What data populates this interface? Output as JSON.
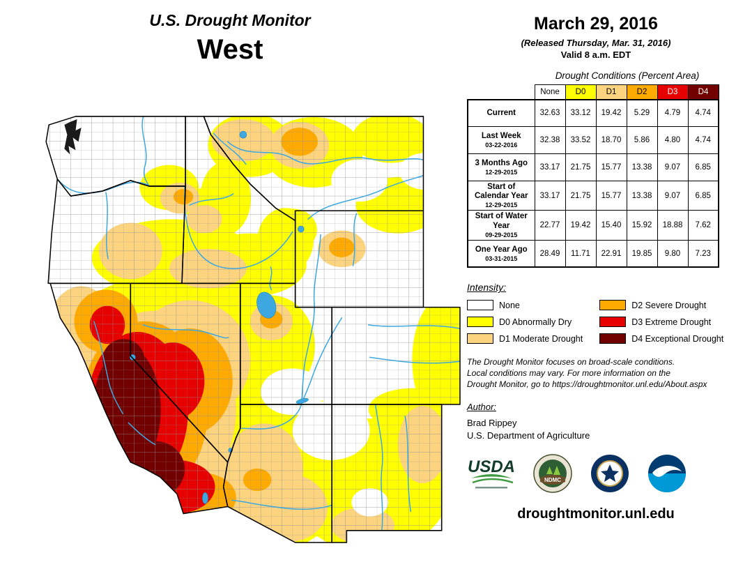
{
  "header": {
    "title": "U.S. Drought Monitor",
    "region": "West"
  },
  "date_block": {
    "date": "March 29, 2016",
    "released": "(Released Thursday, Mar. 31, 2016)",
    "valid": "Valid 8 a.m. EDT"
  },
  "table": {
    "title": "Drought Conditions (Percent Area)",
    "columns": [
      {
        "label": "None",
        "color": "#FFFFFF",
        "text": "#000000"
      },
      {
        "label": "D0",
        "color": "#FFFF00",
        "text": "#000000"
      },
      {
        "label": "D1",
        "color": "#FCD37F",
        "text": "#000000"
      },
      {
        "label": "D2",
        "color": "#FFAA00",
        "text": "#000000"
      },
      {
        "label": "D3",
        "color": "#E60000",
        "text": "#FFFFFF"
      },
      {
        "label": "D4",
        "color": "#730000",
        "text": "#FFFFFF"
      }
    ],
    "rows": [
      {
        "label": "Current",
        "date": "",
        "values": [
          "32.63",
          "33.12",
          "19.42",
          "5.29",
          "4.79",
          "4.74"
        ]
      },
      {
        "label": "Last Week",
        "date": "03-22-2016",
        "values": [
          "32.38",
          "33.52",
          "18.70",
          "5.86",
          "4.80",
          "4.74"
        ]
      },
      {
        "label": "3 Months Ago",
        "date": "12-29-2015",
        "values": [
          "33.17",
          "21.75",
          "15.77",
          "13.38",
          "9.07",
          "6.85"
        ]
      },
      {
        "label": "Start of Calendar Year",
        "date": "12-29-2015",
        "values": [
          "33.17",
          "21.75",
          "15.77",
          "13.38",
          "9.07",
          "6.85"
        ]
      },
      {
        "label": "Start of Water Year",
        "date": "09-29-2015",
        "values": [
          "22.77",
          "19.42",
          "15.40",
          "15.92",
          "18.88",
          "7.62"
        ]
      },
      {
        "label": "One Year Ago",
        "date": "03-31-2015",
        "values": [
          "28.49",
          "11.71",
          "22.91",
          "19.85",
          "9.80",
          "7.23"
        ]
      }
    ]
  },
  "legend": {
    "title": "Intensity:",
    "items": [
      {
        "key": "none",
        "label": "None",
        "color": "#FFFFFF"
      },
      {
        "key": "d0",
        "label": "D0 Abnormally Dry",
        "color": "#FFFF00"
      },
      {
        "key": "d1",
        "label": "D1 Moderate Drought",
        "color": "#FCD37F"
      },
      {
        "key": "d2",
        "label": "D2 Severe Drought",
        "color": "#FFAA00"
      },
      {
        "key": "d3",
        "label": "D3 Extreme Drought",
        "color": "#E60000"
      },
      {
        "key": "d4",
        "label": "D4 Exceptional Drought",
        "color": "#730000"
      }
    ]
  },
  "disclaimer_lines": [
    "The Drought Monitor focuses on broad-scale conditions.",
    "Local conditions may vary. For more information on the",
    "Drought Monitor, go to https://droughtmonitor.unl.edu/About.aspx"
  ],
  "author": {
    "heading": "Author:",
    "name": "Brad Rippey",
    "org": "U.S. Department of Agriculture"
  },
  "logos": [
    {
      "name": "usda-logo",
      "label": "USDA"
    },
    {
      "name": "ndmc-logo",
      "label": "NDMC"
    },
    {
      "name": "doc-logo",
      "label": "U.S. Department of Commerce"
    },
    {
      "name": "noaa-logo",
      "label": "NOAA"
    }
  ],
  "footer": {
    "url": "droughtmonitor.unl.edu"
  },
  "map": {
    "water_color": "#3DA8E0",
    "border_color": "#000000",
    "county_color": "#8f8f8f"
  }
}
